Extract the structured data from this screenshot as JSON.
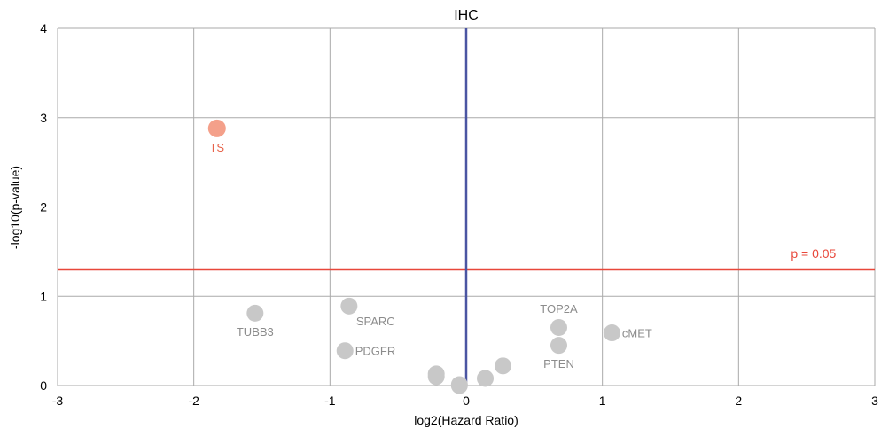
{
  "chart_data": {
    "type": "scatter",
    "title": "IHC",
    "xlabel": "log2(Hazard Ratio)",
    "ylabel": "-log10(p-value)",
    "xlim": [
      -3,
      3
    ],
    "ylim": [
      0,
      4
    ],
    "x_ticks": [
      -3,
      -2,
      -1,
      0,
      1,
      2,
      3
    ],
    "y_ticks": [
      0,
      1,
      2,
      3,
      4
    ],
    "grid": true,
    "vertical_line": {
      "x": 0,
      "color": "#4a55a2"
    },
    "threshold_line": {
      "y": 1.3,
      "label": "p = 0.05",
      "color": "#e8473a"
    },
    "colors": {
      "significant": "#f4a08a",
      "significant_label": "#e8634a",
      "nonsignificant": "#c8c8c8",
      "nonsignificant_label": "#8c8c8c",
      "grid": "#aaaaaa"
    },
    "points": [
      {
        "label": "TS",
        "x": -1.83,
        "y": 2.88,
        "significant": true,
        "label_pos": "below"
      },
      {
        "label": "TUBB3",
        "x": -1.55,
        "y": 0.81,
        "significant": false,
        "label_pos": "below"
      },
      {
        "label": "SPARC",
        "x": -0.86,
        "y": 0.89,
        "significant": false,
        "label_pos": "below-right"
      },
      {
        "label": "PDGFR",
        "x": -0.89,
        "y": 0.39,
        "significant": false,
        "label_pos": "right"
      },
      {
        "label": "TOP2A",
        "x": 0.68,
        "y": 0.65,
        "significant": false,
        "label_pos": "above"
      },
      {
        "label": "PTEN",
        "x": 0.68,
        "y": 0.45,
        "significant": false,
        "label_pos": "below"
      },
      {
        "label": "cMET",
        "x": 1.07,
        "y": 0.59,
        "significant": false,
        "label_pos": "right"
      },
      {
        "label": "",
        "x": -0.22,
        "y": 0.13,
        "significant": false
      },
      {
        "label": "",
        "x": -0.22,
        "y": 0.1,
        "significant": false
      },
      {
        "label": "",
        "x": -0.05,
        "y": 0.01,
        "significant": false
      },
      {
        "label": "",
        "x": -0.05,
        "y": 0.0,
        "significant": false
      },
      {
        "label": "",
        "x": 0.14,
        "y": 0.08,
        "significant": false
      },
      {
        "label": "",
        "x": 0.27,
        "y": 0.22,
        "significant": false
      }
    ]
  }
}
